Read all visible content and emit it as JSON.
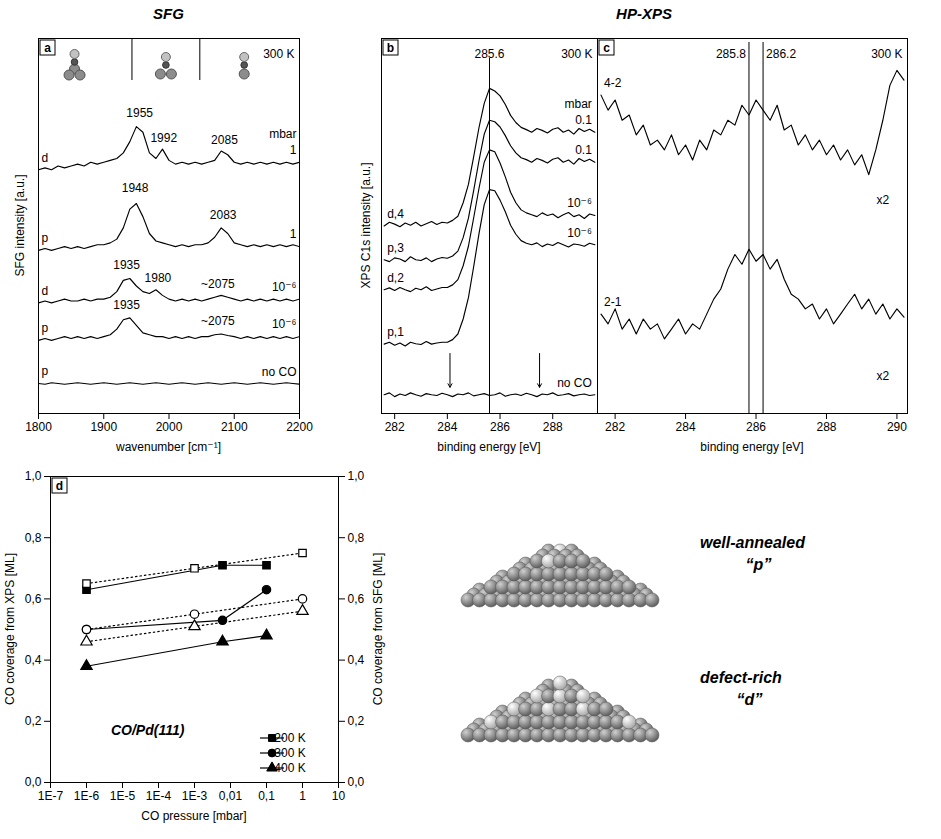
{
  "headers": [
    {
      "text": "SFG",
      "panels": [
        "a"
      ]
    },
    {
      "text": "HP-XPS",
      "panels": [
        "b",
        "c"
      ]
    }
  ],
  "chart_data": [
    {
      "panel": "a",
      "type": "line",
      "xlabel": "wavenumber [cm⁻¹]",
      "ylabel": "SFG intensity [a.u.]",
      "temperature": "300 K",
      "pressure_unit": "mbar",
      "tick_labels": "x",
      "xlim": [
        1800,
        2200
      ],
      "xticks": [
        1800,
        1900,
        2000,
        2100,
        2200
      ],
      "ylim": [
        0,
        10
      ],
      "x": [
        1800,
        1810,
        1820,
        1830,
        1840,
        1850,
        1860,
        1870,
        1880,
        1890,
        1900,
        1910,
        1920,
        1930,
        1940,
        1950,
        1960,
        1970,
        1980,
        1990,
        2000,
        2010,
        2020,
        2030,
        2040,
        2050,
        2060,
        2070,
        2080,
        2090,
        2100,
        2110,
        2120,
        2130,
        2140,
        2150,
        2160,
        2170,
        2180,
        2190,
        2200
      ],
      "series": [
        {
          "name": "d",
          "pressure": "1",
          "color": "#000000",
          "values": [
            6.5,
            6.55,
            6.5,
            6.6,
            6.55,
            6.6,
            6.65,
            6.6,
            6.7,
            6.65,
            6.7,
            6.75,
            6.8,
            6.95,
            7.25,
            7.65,
            7.5,
            6.95,
            6.8,
            7.05,
            6.75,
            6.65,
            6.7,
            6.65,
            6.7,
            6.65,
            6.7,
            6.75,
            7.0,
            6.9,
            6.7,
            6.65,
            6.7,
            6.65,
            6.7,
            6.65,
            6.7,
            6.65,
            6.7,
            6.65,
            6.7
          ]
        },
        {
          "name": "p",
          "pressure": "1",
          "color": "#000000",
          "values": [
            4.35,
            4.4,
            4.35,
            4.4,
            4.45,
            4.4,
            4.45,
            4.4,
            4.45,
            4.5,
            4.5,
            4.55,
            4.65,
            4.95,
            5.45,
            5.6,
            5.25,
            4.8,
            4.6,
            4.55,
            4.5,
            4.45,
            4.5,
            4.45,
            4.5,
            4.5,
            4.55,
            4.7,
            4.95,
            4.8,
            4.55,
            4.5,
            4.45,
            4.5,
            4.45,
            4.5,
            4.45,
            4.5,
            4.45,
            4.5,
            4.45
          ]
        },
        {
          "name": "d",
          "pressure": "10⁻⁶",
          "color": "#000000",
          "values": [
            2.95,
            3.0,
            2.95,
            3.0,
            3.05,
            3.0,
            3.0,
            3.05,
            3.0,
            3.05,
            3.05,
            3.1,
            3.25,
            3.55,
            3.6,
            3.4,
            3.25,
            3.2,
            3.3,
            3.15,
            3.05,
            3.0,
            3.05,
            3.0,
            3.05,
            3.0,
            3.05,
            3.1,
            3.15,
            3.1,
            3.05,
            3.0,
            3.05,
            3.0,
            3.05,
            3.0,
            3.05,
            3.0,
            3.05,
            3.0,
            3.05
          ]
        },
        {
          "name": "p",
          "pressure": "10⁻⁶",
          "color": "#000000",
          "values": [
            1.95,
            2.0,
            1.95,
            2.0,
            2.05,
            2.0,
            2.05,
            2.0,
            2.05,
            2.0,
            2.05,
            2.1,
            2.25,
            2.5,
            2.55,
            2.35,
            2.15,
            2.1,
            2.05,
            2.05,
            2.0,
            2.05,
            2.0,
            2.05,
            2.0,
            2.05,
            2.05,
            2.1,
            2.12,
            2.08,
            2.05,
            2.0,
            2.05,
            2.0,
            2.05,
            2.0,
            2.05,
            2.0,
            2.05,
            2.0,
            2.05
          ]
        },
        {
          "name": "p",
          "pressure": "no CO",
          "color": "#000000",
          "values": [
            0.8,
            0.78,
            0.82,
            0.8,
            0.78,
            0.8,
            0.82,
            0.8,
            0.78,
            0.8,
            0.82,
            0.8,
            0.78,
            0.8,
            0.82,
            0.8,
            0.78,
            0.8,
            0.82,
            0.8,
            0.78,
            0.8,
            0.82,
            0.8,
            0.78,
            0.8,
            0.82,
            0.8,
            0.78,
            0.8,
            0.82,
            0.8,
            0.78,
            0.8,
            0.82,
            0.8,
            0.78,
            0.8,
            0.82,
            0.8,
            0.78
          ]
        }
      ],
      "annotations": [
        {
          "x": 1955,
          "y": 8.0,
          "text": "1955"
        },
        {
          "x": 1992,
          "y": 7.35,
          "text": "1992"
        },
        {
          "x": 2085,
          "y": 7.3,
          "text": "2085"
        },
        {
          "x": 1948,
          "y": 6.0,
          "text": "1948"
        },
        {
          "x": 2083,
          "y": 5.3,
          "text": "2083"
        },
        {
          "x": 1935,
          "y": 3.95,
          "text": "1935"
        },
        {
          "x": 1983,
          "y": 3.6,
          "text": "1980"
        },
        {
          "x": 2075,
          "y": 3.45,
          "text": "~2075"
        },
        {
          "x": 1935,
          "y": 2.9,
          "text": "1935"
        },
        {
          "x": 2075,
          "y": 2.45,
          "text": "~2075"
        }
      ]
    },
    {
      "panel": "b",
      "type": "line",
      "xlabel": "binding energy [eV]",
      "ylabel": "XPS C1s intensity [a.u.]",
      "temperature": "300 K",
      "pressure_unit": "mbar",
      "tick_labels": "x",
      "xlim": [
        281.5,
        289.7
      ],
      "xticks": [
        282,
        284,
        286,
        288
      ],
      "ylim": [
        0,
        10
      ],
      "x": [
        281.6,
        281.8,
        282,
        282.2,
        282.4,
        282.6,
        282.8,
        283,
        283.2,
        283.4,
        283.6,
        283.8,
        284,
        284.2,
        284.4,
        284.6,
        284.8,
        285,
        285.2,
        285.4,
        285.6,
        285.8,
        286,
        286.2,
        286.4,
        286.6,
        286.8,
        287,
        287.2,
        287.4,
        287.6,
        287.8,
        288,
        288.2,
        288.4,
        288.6,
        288.8,
        289,
        289.2,
        289.4,
        289.6
      ],
      "series": [
        {
          "name": "d,4",
          "pressure": "0.1",
          "color": "#000000",
          "values": [
            5.0,
            5.1,
            5.05,
            4.98,
            5.08,
            5.02,
            5.1,
            5.0,
            5.06,
            5.12,
            5.04,
            5.1,
            5.08,
            5.15,
            5.26,
            5.62,
            6.11,
            6.85,
            7.62,
            8.27,
            8.67,
            8.6,
            8.47,
            8.24,
            7.95,
            7.76,
            7.63,
            7.57,
            7.5,
            7.6,
            7.55,
            7.48,
            7.58,
            7.62,
            7.5,
            7.56,
            7.45,
            7.6,
            7.52,
            7.58,
            7.5
          ]
        },
        {
          "name": "p,3",
          "pressure": "0.1",
          "color": "#000000",
          "values": [
            4.1,
            4.05,
            4.15,
            4.12,
            4.05,
            4.18,
            4.1,
            4.08,
            4.15,
            4.05,
            4.12,
            4.16,
            4.14,
            4.2,
            4.33,
            4.69,
            5.21,
            5.95,
            6.74,
            7.45,
            7.82,
            7.78,
            7.64,
            7.41,
            7.14,
            6.95,
            6.82,
            6.77,
            6.7,
            6.8,
            6.75,
            6.68,
            6.78,
            6.82,
            6.7,
            6.76,
            6.65,
            6.8,
            6.72,
            6.78,
            6.7
          ]
        },
        {
          "name": "d,2",
          "pressure": "10⁻⁶",
          "color": "#000000",
          "values": [
            3.3,
            3.35,
            3.28,
            3.36,
            3.3,
            3.25,
            3.34,
            3.3,
            3.38,
            3.28,
            3.32,
            3.36,
            3.36,
            3.43,
            3.57,
            3.94,
            4.46,
            5.22,
            6.0,
            6.7,
            7.03,
            6.98,
            6.68,
            6.31,
            5.9,
            5.62,
            5.43,
            5.35,
            5.3,
            5.25,
            5.35,
            5.28,
            5.32,
            5.22,
            5.3,
            5.36,
            5.25,
            5.3,
            5.2,
            5.32,
            5.28
          ]
        },
        {
          "name": "p,1",
          "pressure": "10⁻⁶",
          "color": "#000000",
          "values": [
            1.85,
            1.9,
            1.82,
            1.88,
            1.8,
            1.9,
            1.86,
            1.84,
            1.92,
            1.85,
            1.88,
            1.9,
            1.9,
            1.97,
            2.12,
            2.52,
            3.09,
            3.92,
            4.79,
            5.57,
            5.97,
            5.94,
            5.69,
            5.38,
            5.02,
            4.78,
            4.61,
            4.54,
            4.5,
            4.55,
            4.45,
            4.52,
            4.48,
            4.56,
            4.5,
            4.44,
            4.52,
            4.5,
            4.46,
            4.54,
            4.5
          ]
        },
        {
          "pressure": "no CO",
          "color": "#000000",
          "values": [
            0.5,
            0.55,
            0.45,
            0.52,
            0.48,
            0.55,
            0.5,
            0.46,
            0.53,
            0.5,
            0.48,
            0.54,
            0.5,
            0.45,
            0.52,
            0.5,
            0.55,
            0.47,
            0.5,
            0.53,
            0.48,
            0.5,
            0.55,
            0.46,
            0.5,
            0.52,
            0.48,
            0.54,
            0.5,
            0.45,
            0.52,
            0.5,
            0.55,
            0.48,
            0.5,
            0.53,
            0.47,
            0.5,
            0.52,
            0.48,
            0.5
          ]
        }
      ],
      "vlines": [
        {
          "x": 285.6,
          "label": "285.6"
        }
      ],
      "arrows": [
        {
          "x": 284.1,
          "y1": 1.6,
          "y2": 0.7
        },
        {
          "x": 287.5,
          "y1": 1.6,
          "y2": 0.7
        }
      ]
    },
    {
      "panel": "c",
      "type": "line",
      "xlabel": "binding energy [eV]",
      "temperature": "300 K",
      "tick_labels": "x",
      "xlim": [
        281.5,
        290.3
      ],
      "xticks": [
        282,
        284,
        286,
        288,
        290
      ],
      "ylim": [
        0,
        10
      ],
      "x": [
        281.6,
        281.8,
        282,
        282.2,
        282.4,
        282.6,
        282.8,
        283,
        283.2,
        283.4,
        283.6,
        283.8,
        284,
        284.2,
        284.4,
        284.6,
        284.8,
        285,
        285.2,
        285.4,
        285.6,
        285.8,
        286,
        286.2,
        286.4,
        286.6,
        286.8,
        287,
        287.2,
        287.4,
        287.6,
        287.8,
        288,
        288.2,
        288.4,
        288.6,
        288.8,
        289,
        289.2,
        289.4,
        289.6,
        289.8,
        290,
        290.2
      ],
      "series": [
        {
          "name": "4-2",
          "color": "#000000",
          "values": [
            8.49,
            8.09,
            8.36,
            7.82,
            7.96,
            7.43,
            7.69,
            7.16,
            7.29,
            7.03,
            7.43,
            6.9,
            7.16,
            6.76,
            7.29,
            7.03,
            7.56,
            7.43,
            7.82,
            7.69,
            8.22,
            7.96,
            8.36,
            8.09,
            7.82,
            8.22,
            7.56,
            7.69,
            7.16,
            7.43,
            7.03,
            7.29,
            6.9,
            7.16,
            6.76,
            7.03,
            6.63,
            6.9,
            6.37,
            7.03,
            7.82,
            8.75,
            9.15,
            8.89
          ]
        },
        {
          "name": "2-1",
          "color": "#000000",
          "values": [
            2.65,
            2.39,
            2.79,
            2.25,
            2.52,
            2.12,
            2.52,
            2.25,
            2.39,
            1.99,
            2.25,
            2.52,
            2.12,
            2.39,
            2.25,
            2.65,
            3.05,
            3.32,
            3.85,
            4.24,
            3.98,
            4.38,
            4.06,
            4.24,
            3.85,
            4.11,
            3.58,
            3.18,
            3.05,
            2.79,
            2.92,
            2.52,
            2.79,
            2.39,
            2.65,
            2.92,
            3.18,
            2.79,
            3.05,
            2.65,
            2.92,
            2.52,
            2.79,
            2.57
          ]
        }
      ],
      "vlines": [
        {
          "x": 285.8,
          "label": "285.8"
        },
        {
          "x": 286.2,
          "label": "286.2"
        }
      ],
      "annotations": [
        {
          "x": 289.6,
          "y": 5.7,
          "text": "x2"
        },
        {
          "x": 289.6,
          "y": 1.0,
          "text": "x2"
        }
      ]
    },
    {
      "panel": "d",
      "type": "scatter",
      "log": "x",
      "xlabel": "CO pressure [mbar]",
      "ylabel": "CO coverage from XPS [ML]",
      "y2label": "CO coverage from SFG [ML]",
      "xlim": [
        1e-07,
        10
      ],
      "xticks": [
        {
          "value": 1e-07,
          "label": "1E-7"
        },
        {
          "value": 1e-06,
          "label": "1E-6"
        },
        {
          "value": 1e-05,
          "label": "1E-5"
        },
        {
          "value": 0.0001,
          "label": "1E-4"
        },
        {
          "value": 0.001,
          "label": "1E-3"
        },
        {
          "value": 0.01,
          "label": "0,01"
        },
        {
          "value": 0.1,
          "label": "0,1"
        },
        1,
        10
      ],
      "ylim": [
        0,
        1
      ],
      "yticks": [
        {
          "value": 0,
          "label": "0,0"
        },
        {
          "value": 0.2,
          "label": "0,2"
        },
        {
          "value": 0.4,
          "label": "0,4"
        },
        {
          "value": 0.6,
          "label": "0,6"
        },
        {
          "value": 0.8,
          "label": "0,8"
        },
        {
          "value": 1,
          "label": "1,0"
        }
      ],
      "y2lim": [
        0,
        1
      ],
      "y2ticks": [
        {
          "value": 0,
          "label": "0,0"
        },
        {
          "value": 0.2,
          "label": "0,2"
        },
        {
          "value": 0.4,
          "label": "0,4"
        },
        {
          "value": 0.6,
          "label": "0,6"
        },
        {
          "value": 0.8,
          "label": "0,8"
        },
        {
          "value": 1,
          "label": "1,0"
        }
      ],
      "legend": "bottom-right",
      "annotations": [
        {
          "x": 5e-05,
          "y": 0.17,
          "text": "CO/Pd(111)"
        }
      ],
      "series": [
        {
          "name": "200 K",
          "axis": "y",
          "marker": "square",
          "line_style": "solid",
          "color": "#000000",
          "x": [
            1e-06,
            0.006,
            0.1
          ],
          "values": [
            0.63,
            0.71,
            0.71
          ]
        },
        {
          "name": "200 K",
          "axis": "y2",
          "marker": "square-open",
          "line_style": "dotted",
          "color": "#000000",
          "x": [
            1e-06,
            0.001,
            1
          ],
          "values": [
            0.65,
            0.7,
            0.75
          ]
        },
        {
          "name": "300 K",
          "axis": "y",
          "marker": "circle",
          "line_style": "solid",
          "color": "#000000",
          "x": [
            1e-06,
            0.006,
            0.1
          ],
          "values": [
            0.5,
            0.53,
            0.63
          ]
        },
        {
          "name": "300 K",
          "axis": "y2",
          "marker": "circle-open",
          "line_style": "dotted",
          "color": "#000000",
          "x": [
            1e-06,
            0.001,
            1
          ],
          "values": [
            0.5,
            0.55,
            0.6
          ]
        },
        {
          "name": "400 K",
          "axis": "y",
          "marker": "triangle",
          "line_style": "solid",
          "color": "#000000",
          "x": [
            1e-06,
            0.006,
            0.1
          ],
          "values": [
            0.38,
            0.46,
            0.48
          ]
        },
        {
          "name": "400 K",
          "axis": "y2",
          "marker": "triangle-open",
          "line_style": "dotted",
          "color": "#000000",
          "x": [
            1e-06,
            0.001,
            1
          ],
          "values": [
            0.46,
            0.51,
            0.56
          ]
        }
      ]
    }
  ],
  "diagram": {
    "items": [
      {
        "label": "well-annealed",
        "name": "“p”"
      },
      {
        "label": "defect-rich",
        "name": "“d”"
      }
    ]
  }
}
